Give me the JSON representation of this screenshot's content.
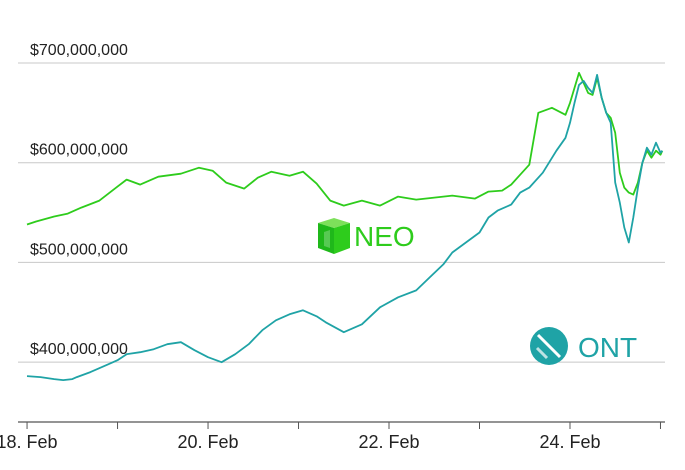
{
  "chart_data": {
    "type": "line",
    "title": "",
    "xlabel": "",
    "ylabel": "",
    "ylim": [
      340000000,
      715000000
    ],
    "x_tick_labels": [
      "18. Feb",
      "20. Feb",
      "22. Feb",
      "24. Feb"
    ],
    "x_tick_values": [
      1,
      3,
      5,
      7
    ],
    "xlim": [
      0.9,
      8.05
    ],
    "y_tick_labels": [
      "$400,000,000",
      "$500,000,000",
      "$600,000,000",
      "$700,000,000"
    ],
    "y_tick_values": [
      400000000,
      500000000,
      600000000,
      700000000
    ],
    "grid": "horizontal",
    "series": [
      {
        "name": "NEO",
        "color": "#2ecc1c",
        "x": [
          1.0,
          1.1,
          1.3,
          1.45,
          1.6,
          1.8,
          2.0,
          2.1,
          2.25,
          2.45,
          2.7,
          2.9,
          3.05,
          3.2,
          3.4,
          3.55,
          3.7,
          3.9,
          4.05,
          4.2,
          4.35,
          4.5,
          4.7,
          4.9,
          5.1,
          5.3,
          5.5,
          5.7,
          5.95,
          6.1,
          6.25,
          6.35,
          6.45,
          6.55,
          6.65,
          6.8,
          6.95,
          7.0,
          7.05,
          7.1,
          7.15,
          7.2,
          7.25,
          7.3,
          7.35,
          7.4,
          7.45,
          7.5,
          7.55,
          7.6,
          7.65,
          7.7,
          7.75,
          7.8,
          7.85,
          7.9,
          7.95,
          8.0,
          8.02
        ],
        "values": [
          538000000,
          541000000,
          546000000,
          549000000,
          555000000,
          562000000,
          576000000,
          583000000,
          578000000,
          586000000,
          589000000,
          595000000,
          592000000,
          580000000,
          574000000,
          585000000,
          591000000,
          587000000,
          591000000,
          579000000,
          562000000,
          557000000,
          562000000,
          557000000,
          566000000,
          563000000,
          565000000,
          567000000,
          564000000,
          571000000,
          572000000,
          578000000,
          588000000,
          598000000,
          650000000,
          655000000,
          648000000,
          660000000,
          675000000,
          690000000,
          680000000,
          670000000,
          668000000,
          685000000,
          665000000,
          650000000,
          645000000,
          630000000,
          590000000,
          575000000,
          570000000,
          568000000,
          580000000,
          600000000,
          612000000,
          605000000,
          612000000,
          608000000,
          612000000
        ]
      },
      {
        "name": "ONT",
        "color": "#1fa3a6",
        "x": [
          1.0,
          1.15,
          1.3,
          1.4,
          1.5,
          1.55,
          1.7,
          1.9,
          2.0,
          2.1,
          2.25,
          2.4,
          2.55,
          2.7,
          2.85,
          3.0,
          3.15,
          3.3,
          3.45,
          3.6,
          3.75,
          3.9,
          4.05,
          4.2,
          4.3,
          4.5,
          4.7,
          4.9,
          5.1,
          5.3,
          5.45,
          5.6,
          5.7,
          5.85,
          6.0,
          6.1,
          6.2,
          6.35,
          6.45,
          6.55,
          6.7,
          6.85,
          6.95,
          7.0,
          7.05,
          7.1,
          7.15,
          7.2,
          7.25,
          7.3,
          7.35,
          7.4,
          7.45,
          7.5,
          7.55,
          7.6,
          7.65,
          7.7,
          7.75,
          7.8,
          7.85,
          7.9,
          7.95,
          8.0,
          8.02
        ],
        "values": [
          386000000,
          385000000,
          383000000,
          382000000,
          383000000,
          385000000,
          390000000,
          398000000,
          402000000,
          408000000,
          410000000,
          413000000,
          418000000,
          420000000,
          412000000,
          405000000,
          400000000,
          408000000,
          418000000,
          432000000,
          442000000,
          448000000,
          452000000,
          446000000,
          440000000,
          430000000,
          438000000,
          455000000,
          465000000,
          472000000,
          485000000,
          498000000,
          510000000,
          520000000,
          530000000,
          545000000,
          552000000,
          558000000,
          570000000,
          575000000,
          590000000,
          612000000,
          625000000,
          640000000,
          660000000,
          678000000,
          682000000,
          675000000,
          670000000,
          688000000,
          665000000,
          650000000,
          640000000,
          580000000,
          560000000,
          535000000,
          520000000,
          545000000,
          575000000,
          600000000,
          615000000,
          608000000,
          620000000,
          610000000,
          612000000
        ]
      }
    ]
  },
  "labels": {
    "neo": "NEO",
    "ont": "ONT"
  },
  "colors": {
    "neo": "#2ecc1c",
    "ont": "#1fa3a6",
    "grid": "#c8c8c8",
    "axis": "#555555"
  },
  "icons": {
    "neo": "neo-cube-icon",
    "ont": "ont-circle-icon"
  }
}
